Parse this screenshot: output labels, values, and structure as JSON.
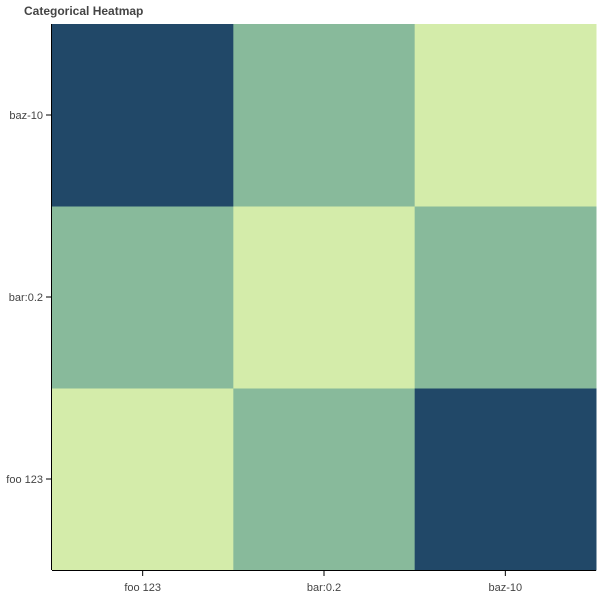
{
  "chart_data": {
    "type": "heatmap",
    "title": "Categorical Heatmap",
    "x_categories": [
      "foo 123",
      "bar:0.2",
      "baz-10"
    ],
    "y_categories": [
      "foo 123",
      "bar:0.2",
      "baz-10"
    ],
    "values": [
      [
        0,
        1,
        2
      ],
      [
        1,
        0,
        1
      ],
      [
        2,
        1,
        0
      ]
    ],
    "colors": [
      "#d4ecaa",
      "#88ba9b",
      "#214868"
    ],
    "xlabel": "",
    "ylabel": "",
    "grid": false,
    "legend": "none"
  }
}
